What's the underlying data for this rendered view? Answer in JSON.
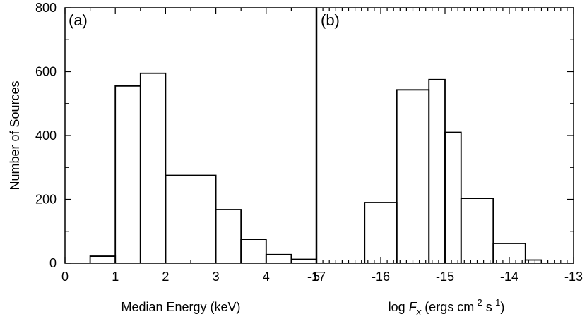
{
  "chart_data": [
    {
      "type": "histogram",
      "panel_label": "(a)",
      "xlabel": "Median Energy (keV)",
      "ylabel": "Number of Sources",
      "xlim": [
        0,
        5
      ],
      "ylim": [
        0,
        800
      ],
      "x_ticks": [
        "0",
        "1",
        "2",
        "3",
        "4",
        "5"
      ],
      "y_ticks": [
        "0",
        "200",
        "400",
        "600",
        "800"
      ],
      "bins": [
        {
          "x0": 0.5,
          "x1": 1.0,
          "count": 22
        },
        {
          "x0": 1.0,
          "x1": 1.5,
          "count": 555
        },
        {
          "x0": 1.5,
          "x1": 2.0,
          "count": 595
        },
        {
          "x0": 2.0,
          "x1": 3.0,
          "count": 275
        },
        {
          "x0": 3.0,
          "x1": 3.5,
          "count": 168
        },
        {
          "x0": 3.5,
          "x1": 4.0,
          "count": 75
        },
        {
          "x0": 4.0,
          "x1": 4.5,
          "count": 27
        },
        {
          "x0": 4.5,
          "x1": 5.0,
          "count": 12
        }
      ]
    },
    {
      "type": "histogram",
      "panel_label": "(b)",
      "xlabel_prefix": "log ",
      "xlabel_var": "F",
      "xlabel_sub": "x",
      "xlabel_units_a": " (ergs cm",
      "xlabel_sup1": "-2",
      "xlabel_units_b": " s",
      "xlabel_sup2": "-1",
      "xlabel_units_c": ")",
      "xlim": [
        -17,
        -13
      ],
      "ylim": [
        0,
        800
      ],
      "x_ticks": [
        "-17",
        "-16",
        "-15",
        "-14",
        "-13"
      ],
      "bins": [
        {
          "x0": -16.25,
          "x1": -15.75,
          "count": 190
        },
        {
          "x0": -15.75,
          "x1": -15.25,
          "count": 543
        },
        {
          "x0": -15.25,
          "x1": -15.0,
          "count": 575
        },
        {
          "x0": -15.0,
          "x1": -14.75,
          "count": 410
        },
        {
          "x0": -14.75,
          "x1": -14.25,
          "count": 203
        },
        {
          "x0": -14.25,
          "x1": -13.75,
          "count": 62
        },
        {
          "x0": -13.75,
          "x1": -13.5,
          "count": 10
        }
      ]
    }
  ]
}
